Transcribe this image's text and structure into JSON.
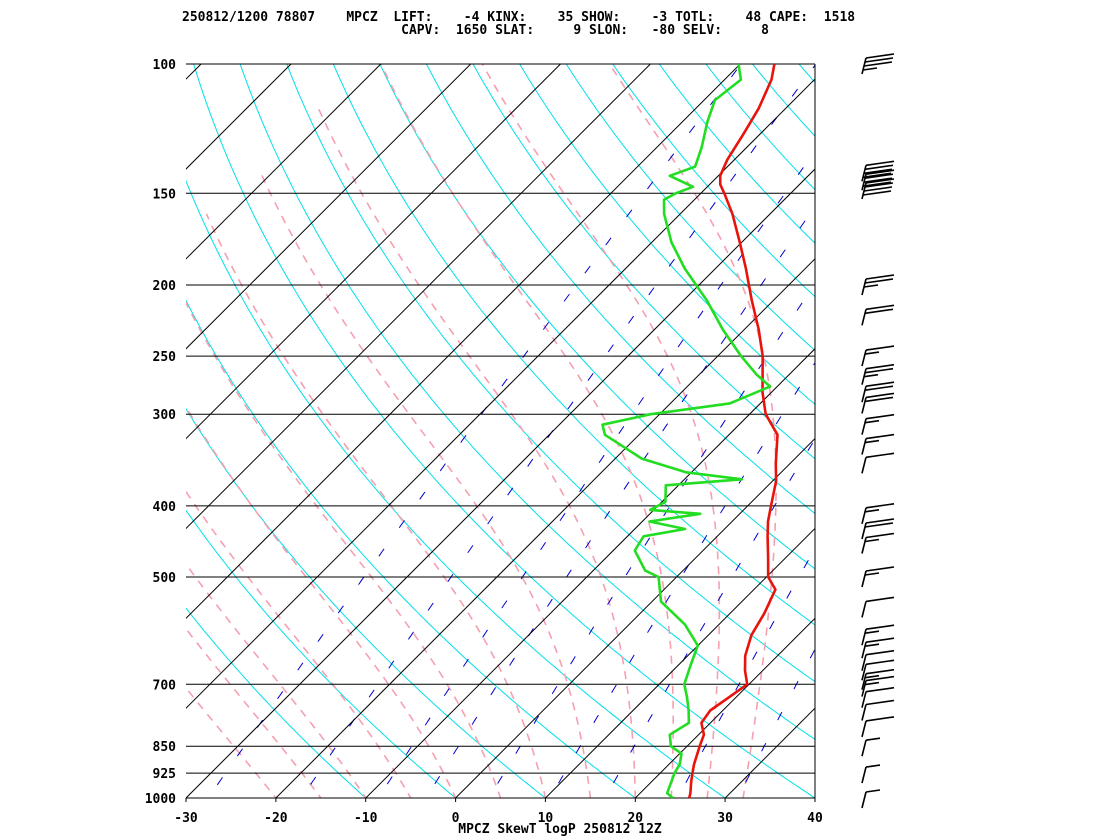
{
  "header": {
    "line1": "250812/1200 78807    MPCZ  LIFT:    -4 KINX:    35 SHOW:    -3 TOTL:    48 CAPE:  1518",
    "line2": "                            CAPV:  1650 SLAT:     9 SLON:   -80 SELV:     8"
  },
  "footer": "MPCZ SkewT logP 250812 12Z",
  "colors": {
    "temperature": "#e8140c",
    "dewpoint": "#22dd22",
    "isotherm": "#000000",
    "isobar": "#000000",
    "dry_adiabat": "#00e0e8",
    "moist_adiabat": "#f5a0b0",
    "mixing_ratio": "#0000cc",
    "wind_barb": "#000000"
  },
  "chart_data": {
    "type": "line",
    "title": "MPCZ SkewT logP 250812 12Z",
    "station": "MPCZ",
    "indices": {
      "LIFT": "-4",
      "KINX": "35",
      "SHOW": "-3",
      "TOTL": "48",
      "CAPE": "1518",
      "CAPV": "1650",
      "SLAT": "9",
      "SLON": "-80",
      "SELV": "8"
    },
    "xlabel": "",
    "ylabel": "",
    "x_ticks": [
      "-30",
      "-20",
      "-10",
      "0",
      "10",
      "20",
      "30",
      "40"
    ],
    "y_ticks": [
      "100",
      "150",
      "200",
      "250",
      "300",
      "400",
      "500",
      "700",
      "850",
      "925",
      "1000"
    ],
    "x_range": [
      -30,
      40
    ],
    "y_range_hpa": [
      1000,
      100
    ],
    "y_scale": "log",
    "grid": true,
    "series": [
      {
        "key": "temperature",
        "points": [
          [
            1000,
            26.0
          ],
          [
            985,
            25.6
          ],
          [
            950,
            24.4
          ],
          [
            925,
            23.6
          ],
          [
            900,
            22.8
          ],
          [
            850,
            21.4
          ],
          [
            820,
            20.6
          ],
          [
            790,
            19.0
          ],
          [
            760,
            18.6
          ],
          [
            730,
            19.2
          ],
          [
            700,
            19.8
          ],
          [
            670,
            18.0
          ],
          [
            640,
            16.4
          ],
          [
            600,
            14.8
          ],
          [
            560,
            13.8
          ],
          [
            520,
            12.4
          ],
          [
            500,
            10.2
          ],
          [
            470,
            8.0
          ],
          [
            440,
            5.6
          ],
          [
            420,
            4.0
          ],
          [
            400,
            2.6
          ],
          [
            370,
            0.4
          ],
          [
            350,
            -1.6
          ],
          [
            320,
            -4.6
          ],
          [
            300,
            -8.2
          ],
          [
            280,
            -11.0
          ],
          [
            250,
            -15.0
          ],
          [
            230,
            -18.4
          ],
          [
            210,
            -22.4
          ],
          [
            190,
            -26.6
          ],
          [
            175,
            -30.2
          ],
          [
            160,
            -34.2
          ],
          [
            150,
            -37.4
          ],
          [
            146,
            -38.8
          ],
          [
            142,
            -39.8
          ],
          [
            135,
            -40.8
          ],
          [
            125,
            -41.8
          ],
          [
            115,
            -43.0
          ],
          [
            105,
            -44.8
          ],
          [
            100,
            -46.2
          ]
        ]
      },
      {
        "key": "dewpoint",
        "points": [
          [
            1000,
            24.2
          ],
          [
            985,
            23.0
          ],
          [
            950,
            22.2
          ],
          [
            925,
            21.6
          ],
          [
            900,
            21.2
          ],
          [
            870,
            20.2
          ],
          [
            850,
            18.2
          ],
          [
            820,
            16.8
          ],
          [
            790,
            17.6
          ],
          [
            760,
            16.2
          ],
          [
            730,
            14.6
          ],
          [
            700,
            12.8
          ],
          [
            660,
            11.4
          ],
          [
            620,
            10.0
          ],
          [
            580,
            6.2
          ],
          [
            540,
            1.0
          ],
          [
            500,
            -2.0
          ],
          [
            490,
            -4.2
          ],
          [
            460,
            -7.6
          ],
          [
            440,
            -8.2
          ],
          [
            430,
            -4.4
          ],
          [
            420,
            -9.2
          ],
          [
            410,
            -4.4
          ],
          [
            405,
            -10.4
          ],
          [
            395,
            -9.6
          ],
          [
            375,
            -11.4
          ],
          [
            368,
            -3.6
          ],
          [
            360,
            -10.6
          ],
          [
            345,
            -17.0
          ],
          [
            320,
            -23.8
          ],
          [
            310,
            -25.2
          ],
          [
            300,
            -21.0
          ],
          [
            290,
            -13.4
          ],
          [
            275,
            -10.8
          ],
          [
            265,
            -13.6
          ],
          [
            250,
            -17.4
          ],
          [
            230,
            -22.4
          ],
          [
            210,
            -27.4
          ],
          [
            190,
            -33.4
          ],
          [
            175,
            -37.8
          ],
          [
            160,
            -41.8
          ],
          [
            153,
            -43.4
          ],
          [
            150,
            -42.8
          ],
          [
            147,
            -41.6
          ],
          [
            142,
            -45.4
          ],
          [
            138,
            -43.6
          ],
          [
            130,
            -45.0
          ],
          [
            120,
            -47.2
          ],
          [
            112,
            -48.8
          ],
          [
            105,
            -48.2
          ],
          [
            100,
            -50.2
          ]
        ]
      }
    ],
    "wind_barbs": [
      {
        "p": 100,
        "speed_kt": 35
      },
      {
        "p": 140,
        "speed_kt": 40
      },
      {
        "p": 144,
        "speed_kt": 40
      },
      {
        "p": 148,
        "speed_kt": 40
      },
      {
        "p": 200,
        "speed_kt": 25
      },
      {
        "p": 220,
        "speed_kt": 20
      },
      {
        "p": 250,
        "speed_kt": 15
      },
      {
        "p": 265,
        "speed_kt": 25
      },
      {
        "p": 280,
        "speed_kt": 20
      },
      {
        "p": 290,
        "speed_kt": 20
      },
      {
        "p": 310,
        "speed_kt": 15
      },
      {
        "p": 330,
        "speed_kt": 15
      },
      {
        "p": 350,
        "speed_kt": 10
      },
      {
        "p": 410,
        "speed_kt": 15
      },
      {
        "p": 430,
        "speed_kt": 20
      },
      {
        "p": 450,
        "speed_kt": 15
      },
      {
        "p": 500,
        "speed_kt": 15
      },
      {
        "p": 550,
        "speed_kt": 10
      },
      {
        "p": 600,
        "speed_kt": 15
      },
      {
        "p": 625,
        "speed_kt": 15
      },
      {
        "p": 650,
        "speed_kt": 10
      },
      {
        "p": 670,
        "speed_kt": 10
      },
      {
        "p": 690,
        "speed_kt": 15
      },
      {
        "p": 705,
        "speed_kt": 15
      },
      {
        "p": 730,
        "speed_kt": 10
      },
      {
        "p": 760,
        "speed_kt": 10
      },
      {
        "p": 800,
        "speed_kt": 10
      },
      {
        "p": 850,
        "speed_kt": 5
      },
      {
        "p": 925,
        "speed_kt": 5
      },
      {
        "p": 1000,
        "speed_kt": 5
      }
    ],
    "dry_adiabats_theta_c": [
      -10,
      0,
      10,
      20,
      30,
      40,
      50,
      60,
      70,
      80,
      90,
      100,
      110,
      120,
      130,
      140,
      150,
      160,
      170,
      180,
      190,
      200
    ],
    "moist_adiabats_tw_c": [
      -20,
      -15,
      -10,
      -5,
      0,
      5,
      10,
      15,
      20,
      24,
      28,
      32
    ],
    "mixing_ratios_gkg": [
      0.4,
      1,
      2,
      3,
      5,
      8,
      12,
      20,
      30,
      50
    ]
  }
}
